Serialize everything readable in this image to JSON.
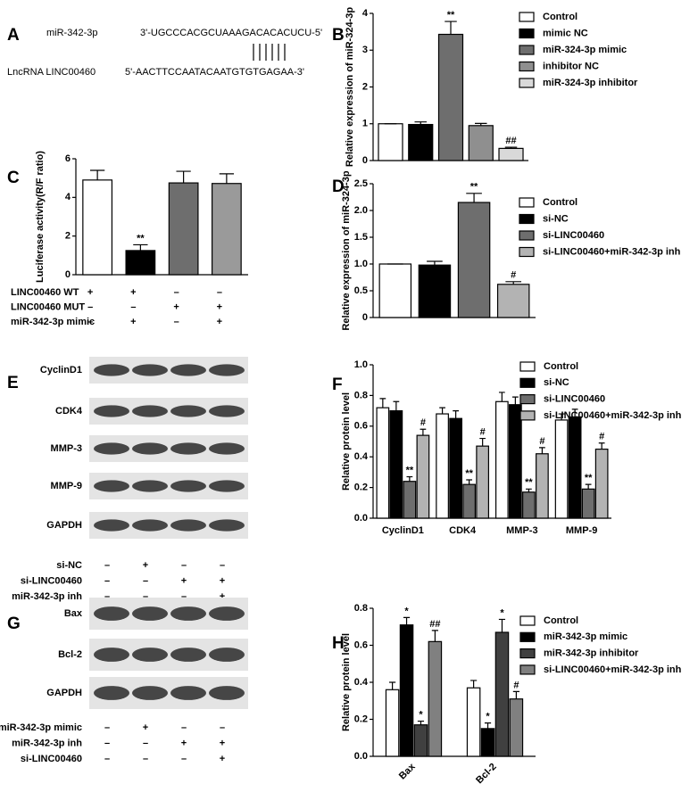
{
  "panels": [
    {
      "label": "A",
      "rows": [
        {
          "name": "miR-342-3p",
          "sequence": "3'-UGCCCACGCUAAAGACACACUCU-5'"
        },
        {
          "name": "LncRNA LINC00460",
          "sequence": "5'-AACTTCCAATACAATGTGTGAGAA-3'"
        }
      ]
    },
    {
      "label": "E",
      "bands": [
        "CyclinD1",
        "CDK4",
        "MMP-3",
        "MMP-9",
        "GAPDH"
      ],
      "conditions": [
        {
          "name": "si-NC",
          "signs": [
            "–",
            "+",
            "–",
            "–"
          ]
        },
        {
          "name": "si-LINC00460",
          "signs": [
            "–",
            "–",
            "+",
            "+"
          ]
        },
        {
          "name": "miR-342-3p inh",
          "signs": [
            "–",
            "–",
            "–",
            "+"
          ]
        }
      ]
    },
    {
      "label": "G",
      "bands": [
        "Bax",
        "Bcl-2",
        "GAPDH"
      ],
      "conditions": [
        {
          "name": "miR-342-3p mimic",
          "signs": [
            "–",
            "+",
            "–",
            "–"
          ]
        },
        {
          "name": "miR-342-3p inh",
          "signs": [
            "–",
            "–",
            "+",
            "+"
          ]
        },
        {
          "name": "si-LINC00460",
          "signs": [
            "–",
            "–",
            "–",
            "+"
          ]
        }
      ]
    }
  ],
  "chart_data": [
    {
      "label": "B",
      "type": "bar",
      "y_label": "Relative expression of miR-324-3p",
      "categories": [
        null
      ],
      "ylim": [
        0,
        4
      ],
      "yticks": [
        0,
        1,
        2,
        3,
        4
      ],
      "grid": false,
      "legend": "right",
      "series": [
        {
          "name": "Control",
          "color": "#ffffff",
          "values": [
            1.0
          ],
          "errors": [
            0.0
          ],
          "significance": [
            null
          ]
        },
        {
          "name": "mimic NC",
          "color": "#000000",
          "values": [
            0.98
          ],
          "errors": [
            0.07
          ],
          "significance": [
            null
          ]
        },
        {
          "name": "miR-324-3p mimic",
          "color": "#6e6e6e",
          "values": [
            3.43
          ],
          "errors": [
            0.35
          ],
          "significance": [
            "**"
          ]
        },
        {
          "name": "inhibitor NC",
          "color": "#8f8f8f",
          "values": [
            0.95
          ],
          "errors": [
            0.06
          ],
          "significance": [
            null
          ]
        },
        {
          "name": "miR-324-3p inhibitor",
          "color": "#d9d9d9",
          "values": [
            0.33
          ],
          "errors": [
            0.03
          ],
          "significance": [
            "##"
          ]
        }
      ]
    },
    {
      "label": "C",
      "type": "bar",
      "y_label": "Luciferase activity(R/F ratio)",
      "categories": [
        null,
        null,
        null,
        null
      ],
      "ylim": [
        0,
        6
      ],
      "yticks": [
        0,
        2,
        4,
        6
      ],
      "grid": false,
      "series": [
        {
          "colors": [
            "#ffffff",
            "#000000",
            "#6e6e6e",
            "#9a9a9a"
          ],
          "values": [
            4.9,
            1.25,
            4.75,
            4.72
          ],
          "errors": [
            0.5,
            0.3,
            0.6,
            0.5
          ],
          "significance": [
            null,
            "**",
            null,
            null
          ]
        }
      ],
      "conditions": [
        {
          "name": "LINC00460 WT",
          "signs": [
            "+",
            "+",
            "–",
            "–"
          ]
        },
        {
          "name": "LINC00460 MUT",
          "signs": [
            "–",
            "–",
            "+",
            "+"
          ]
        },
        {
          "name": "miR-342-3p mimic",
          "signs": [
            "–",
            "+",
            "–",
            "+"
          ]
        }
      ]
    },
    {
      "label": "D",
      "type": "bar",
      "y_label": "Relative expression of miR-324-3p",
      "categories": [
        null
      ],
      "ylim": [
        0,
        2.5
      ],
      "yticks": [
        0,
        0.5,
        {
          "value": 1,
          "label": "1.0"
        },
        1.5,
        {
          "value": 2,
          "label": "2.0"
        },
        2.5
      ],
      "grid": false,
      "legend": "right",
      "series": [
        {
          "name": "Control",
          "color": "#ffffff",
          "values": [
            1.0
          ],
          "errors": [
            0.0
          ],
          "significance": [
            null
          ]
        },
        {
          "name": "si-NC",
          "color": "#000000",
          "values": [
            0.98
          ],
          "errors": [
            0.07
          ],
          "significance": [
            null
          ]
        },
        {
          "name": "si-LINC00460",
          "color": "#6e6e6e",
          "values": [
            2.15
          ],
          "errors": [
            0.17
          ],
          "significance": [
            "**"
          ]
        },
        {
          "name": "si-LINC00460+miR-342-3p inh",
          "color": "#b3b3b3",
          "values": [
            0.62
          ],
          "errors": [
            0.05
          ],
          "significance": [
            "#"
          ]
        }
      ]
    },
    {
      "label": "F",
      "type": "bar",
      "y_label": "Relative protein level",
      "categories": [
        "CyclinD1",
        "CDK4",
        "MMP-3",
        "MMP-9"
      ],
      "ylim": [
        0,
        1
      ],
      "yticks": [
        {
          "value": 0,
          "label": "0.0"
        },
        0.2,
        0.4,
        0.6,
        0.8,
        {
          "value": 1,
          "label": "1.0"
        }
      ],
      "grid": false,
      "legend": "right",
      "series": [
        {
          "name": "Control",
          "color": "#ffffff",
          "values": [
            0.72,
            0.68,
            0.76,
            0.64
          ],
          "errors": [
            0.06,
            0.04,
            0.06,
            0.04
          ],
          "significance": [
            null,
            null,
            null,
            null
          ]
        },
        {
          "name": "si-NC",
          "color": "#000000",
          "values": [
            0.7,
            0.65,
            0.74,
            0.66
          ],
          "errors": [
            0.06,
            0.05,
            0.05,
            0.05
          ],
          "significance": [
            null,
            null,
            null,
            null
          ]
        },
        {
          "name": "si-LINC00460",
          "color": "#6e6e6e",
          "values": [
            0.24,
            0.22,
            0.17,
            0.19
          ],
          "errors": [
            0.03,
            0.03,
            0.02,
            0.03
          ],
          "significance": [
            "**",
            "**",
            "**",
            "**"
          ]
        },
        {
          "name": "si-LINC00460+miR-342-3p inh",
          "color": "#b3b3b3",
          "values": [
            0.54,
            0.47,
            0.42,
            0.45
          ],
          "errors": [
            0.04,
            0.05,
            0.04,
            0.04
          ],
          "significance": [
            "#",
            "#",
            "#",
            "#"
          ]
        }
      ]
    },
    {
      "label": "H",
      "type": "bar",
      "y_label": "Relative protein level",
      "categories": [
        "Bax",
        "Bcl-2"
      ],
      "ylim": [
        0,
        0.8
      ],
      "yticks": [
        {
          "value": 0,
          "label": "0.0"
        },
        0.2,
        0.4,
        0.6,
        0.8
      ],
      "grid": false,
      "legend": "right",
      "series": [
        {
          "name": "Control",
          "color": "#ffffff",
          "values": [
            0.36,
            0.37
          ],
          "errors": [
            0.04,
            0.04
          ],
          "significance": [
            null,
            null
          ]
        },
        {
          "name": "miR-342-3p mimic",
          "color": "#000000",
          "values": [
            0.71,
            0.15
          ],
          "errors": [
            0.04,
            0.03
          ],
          "significance": [
            "*",
            "*"
          ]
        },
        {
          "name": "miR-342-3p inhibitor",
          "color": "#404040",
          "values": [
            0.17,
            0.67
          ],
          "errors": [
            0.02,
            0.07
          ],
          "significance": [
            "*",
            "*"
          ]
        },
        {
          "name": "si-LINC00460+miR-342-3p inh",
          "color": "#808080",
          "values": [
            0.62,
            0.31
          ],
          "errors": [
            0.06,
            0.04
          ],
          "significance": [
            "##",
            "#"
          ]
        }
      ]
    }
  ]
}
